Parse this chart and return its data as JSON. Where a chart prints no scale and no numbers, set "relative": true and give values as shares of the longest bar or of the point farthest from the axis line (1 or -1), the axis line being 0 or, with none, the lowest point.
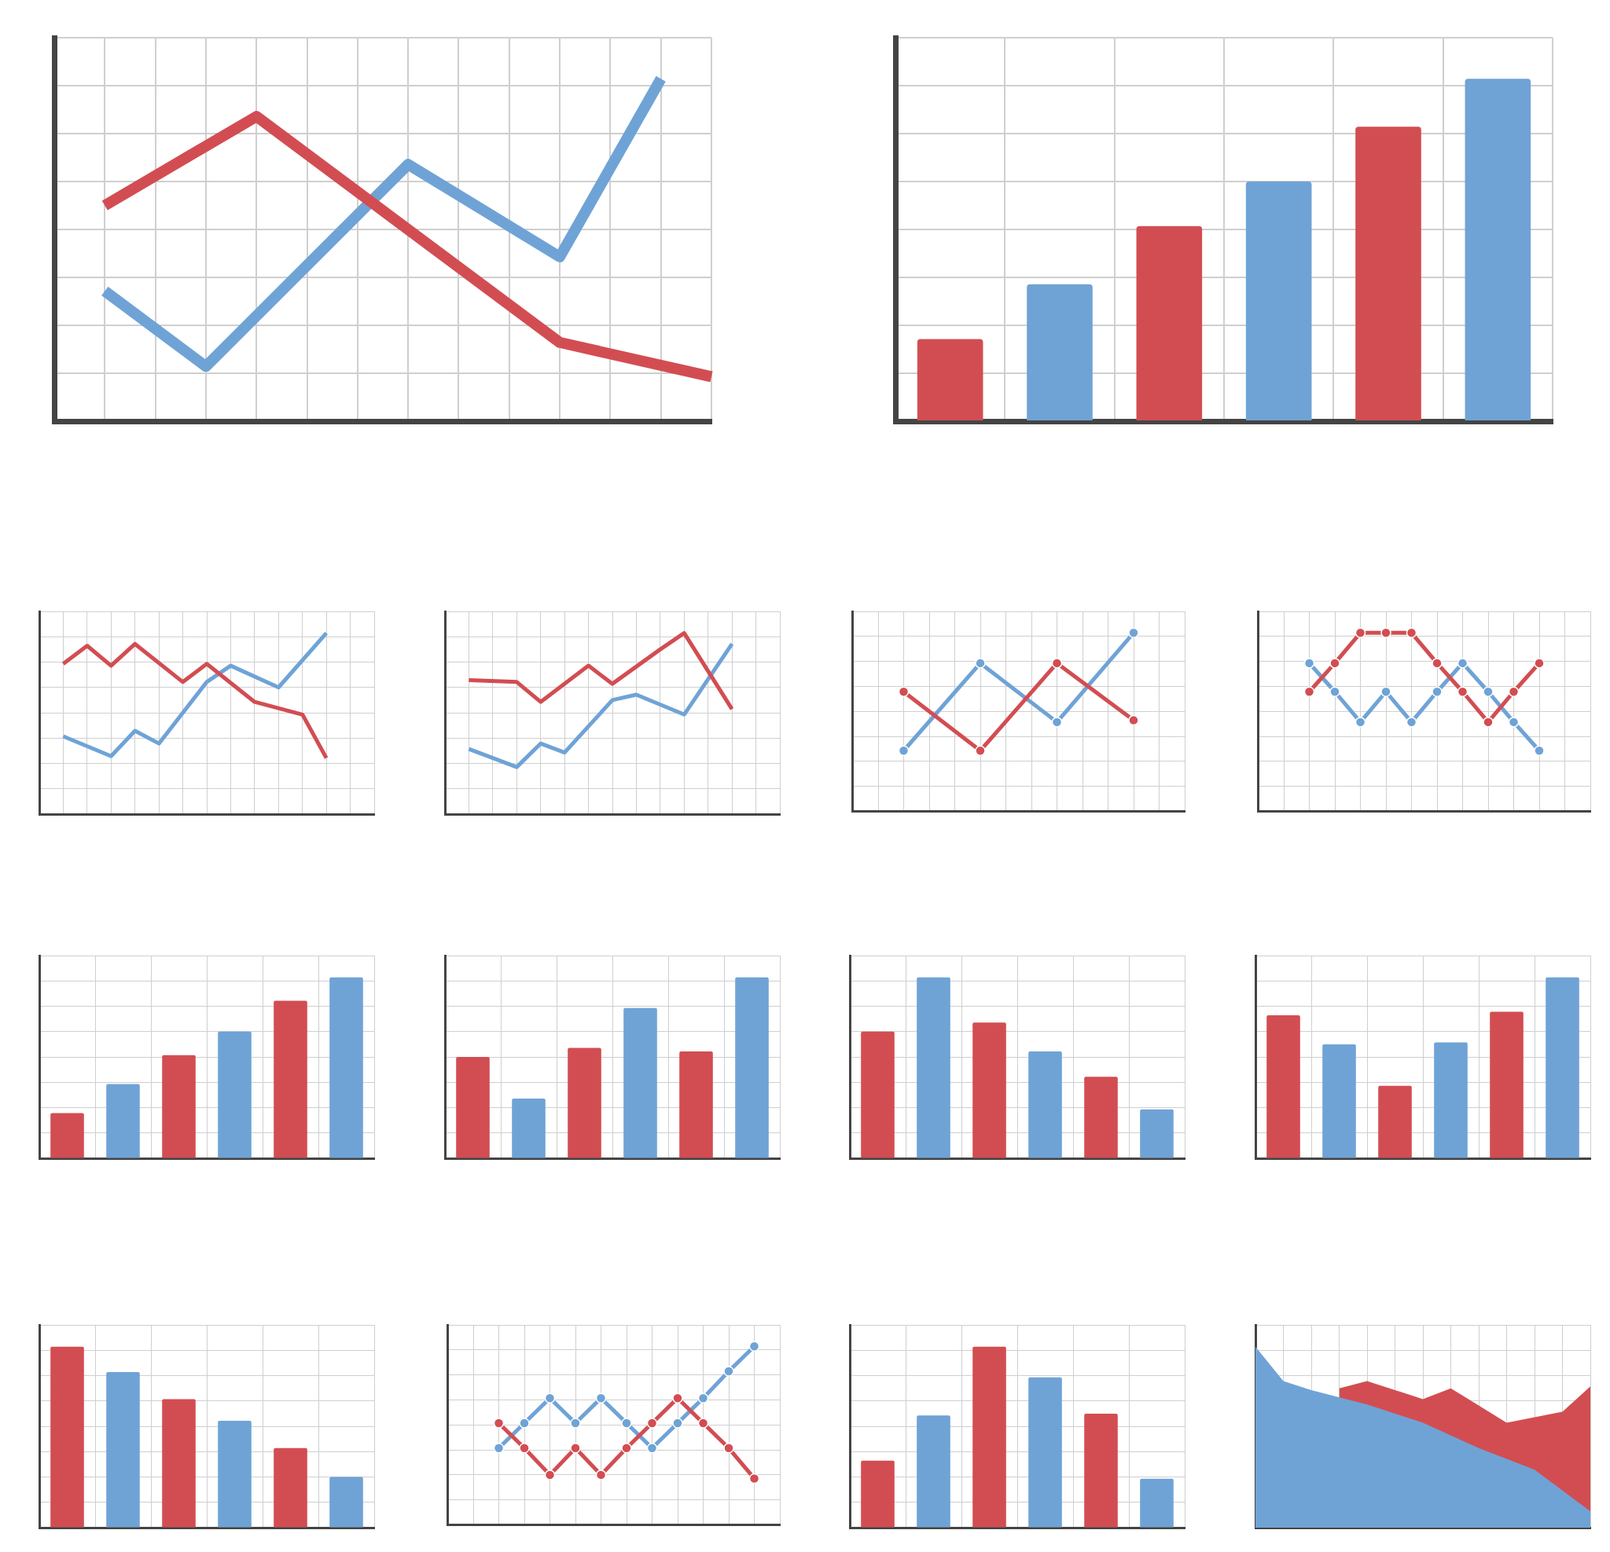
{
  "chart_data": [
    {
      "type": "line",
      "relative": true,
      "grid": true,
      "categories": [
        null,
        null,
        null,
        null,
        null,
        null,
        null,
        null,
        null,
        null,
        null,
        null,
        null,
        null
      ],
      "series": [
        {
          "color": "#d24d52",
          "values": [
            null,
            0.63,
            null,
            null,
            0.89,
            null,
            null,
            null,
            null,
            null,
            0.23,
            null,
            null,
            0.13
          ]
        },
        {
          "color": "#6fa3d6",
          "values": [
            null,
            0.38,
            null,
            0.16,
            null,
            null,
            null,
            0.75,
            null,
            null,
            0.48,
            null,
            1,
            null
          ]
        }
      ]
    },
    {
      "type": "bar",
      "relative": true,
      "grid": true,
      "categories": [
        null,
        null,
        null,
        null,
        null,
        null
      ],
      "values": [
        0.24,
        0.4,
        0.57,
        0.7,
        0.86,
        1
      ],
      "colors": [
        "#d24d52",
        "#6fa3d6",
        "#d24d52",
        "#6fa3d6",
        "#d24d52",
        "#6fa3d6"
      ]
    },
    {
      "type": "line",
      "relative": true,
      "grid": true,
      "categories": [
        null,
        null,
        null,
        null,
        null,
        null,
        null,
        null,
        null,
        null,
        null,
        null,
        null,
        null,
        null
      ],
      "series": [
        {
          "color": "#d24d52",
          "values": [
            null,
            0.83,
            0.93,
            0.82,
            0.94,
            null,
            0.73,
            0.83,
            null,
            0.62,
            null,
            0.55,
            0.31,
            null,
            null
          ]
        },
        {
          "color": "#6fa3d6",
          "values": [
            null,
            0.43,
            null,
            0.32,
            0.46,
            0.39,
            null,
            0.73,
            0.82,
            null,
            0.7,
            null,
            1,
            null,
            null
          ]
        }
      ]
    },
    {
      "type": "line",
      "relative": true,
      "grid": true,
      "categories": [
        null,
        null,
        null,
        null,
        null,
        null,
        null,
        null,
        null,
        null,
        null,
        null,
        null,
        null,
        null
      ],
      "series": [
        {
          "color": "#d24d52",
          "values": [
            null,
            0.74,
            null,
            0.73,
            0.62,
            null,
            0.82,
            0.72,
            null,
            0.91,
            1,
            null,
            0.58,
            null,
            null
          ]
        },
        {
          "color": "#6fa3d6",
          "values": [
            null,
            0.36,
            null,
            0.26,
            0.39,
            0.34,
            null,
            0.63,
            0.66,
            null,
            0.55,
            null,
            0.94,
            null,
            null
          ]
        }
      ]
    },
    {
      "type": "line",
      "relative": true,
      "grid": true,
      "marker": "circle",
      "categories": [
        null,
        null,
        null,
        null,
        null,
        null,
        null,
        null,
        null,
        null,
        null,
        null,
        null,
        null
      ],
      "series": [
        {
          "color": "#d24d52",
          "values": [
            null,
            null,
            0.67,
            null,
            null,
            0.34,
            null,
            null,
            0.83,
            null,
            null,
            0.51,
            null,
            null
          ]
        },
        {
          "color": "#6fa3d6",
          "values": [
            null,
            null,
            0.34,
            null,
            null,
            0.83,
            null,
            null,
            0.5,
            null,
            null,
            1,
            null,
            null
          ]
        }
      ]
    },
    {
      "type": "line",
      "relative": true,
      "grid": true,
      "marker": "circle",
      "categories": [
        null,
        null,
        null,
        null,
        null,
        null,
        null,
        null,
        null,
        null,
        null,
        null,
        null,
        null
      ],
      "series": [
        {
          "color": "#d24d52",
          "values": [
            null,
            null,
            0.67,
            0.83,
            1,
            1,
            1,
            0.83,
            0.67,
            0.5,
            0.67,
            0.83,
            null,
            null
          ]
        },
        {
          "color": "#6fa3d6",
          "values": [
            null,
            null,
            0.83,
            0.67,
            0.5,
            0.67,
            0.5,
            0.67,
            0.83,
            0.67,
            0.5,
            0.34,
            null,
            null
          ]
        }
      ]
    },
    {
      "type": "bar",
      "relative": true,
      "grid": true,
      "categories": [
        null,
        null,
        null,
        null,
        null,
        null
      ],
      "values": [
        0.25,
        0.41,
        0.57,
        0.7,
        0.87,
        1
      ],
      "colors": [
        "#d24d52",
        "#6fa3d6",
        "#d24d52",
        "#6fa3d6",
        "#d24d52",
        "#6fa3d6"
      ]
    },
    {
      "type": "bar",
      "relative": true,
      "grid": true,
      "categories": [
        null,
        null,
        null,
        null,
        null,
        null
      ],
      "values": [
        0.56,
        0.33,
        0.61,
        0.83,
        0.59,
        1
      ],
      "colors": [
        "#d24d52",
        "#6fa3d6",
        "#d24d52",
        "#6fa3d6",
        "#d24d52",
        "#6fa3d6"
      ]
    },
    {
      "type": "bar",
      "relative": true,
      "grid": true,
      "categories": [
        null,
        null,
        null,
        null,
        null,
        null
      ],
      "values": [
        0.7,
        1,
        0.75,
        0.59,
        0.45,
        0.27
      ],
      "colors": [
        "#d24d52",
        "#6fa3d6",
        "#d24d52",
        "#6fa3d6",
        "#d24d52",
        "#6fa3d6"
      ]
    },
    {
      "type": "bar",
      "relative": true,
      "grid": true,
      "categories": [
        null,
        null,
        null,
        null,
        null,
        null
      ],
      "values": [
        0.79,
        0.63,
        0.4,
        0.64,
        0.81,
        1
      ],
      "colors": [
        "#d24d52",
        "#6fa3d6",
        "#d24d52",
        "#6fa3d6",
        "#d24d52",
        "#6fa3d6"
      ]
    },
    {
      "type": "bar",
      "relative": true,
      "grid": true,
      "categories": [
        null,
        null,
        null,
        null,
        null,
        null
      ],
      "values": [
        1,
        0.86,
        0.71,
        0.59,
        0.44,
        0.28
      ],
      "colors": [
        "#d24d52",
        "#6fa3d6",
        "#d24d52",
        "#6fa3d6",
        "#d24d52",
        "#6fa3d6"
      ]
    },
    {
      "type": "line",
      "relative": true,
      "grid": true,
      "marker": "circle",
      "categories": [
        null,
        null,
        null,
        null,
        null,
        null,
        null,
        null,
        null,
        null,
        null,
        null,
        null,
        null
      ],
      "series": [
        {
          "color": "#d24d52",
          "values": [
            null,
            null,
            0.57,
            0.43,
            0.28,
            0.43,
            0.28,
            0.43,
            0.57,
            0.71,
            0.57,
            0.43,
            0.26,
            null
          ]
        },
        {
          "color": "#6fa3d6",
          "values": [
            null,
            null,
            0.43,
            0.57,
            0.71,
            0.57,
            0.71,
            0.57,
            0.43,
            0.57,
            0.71,
            0.86,
            1,
            null
          ]
        }
      ]
    },
    {
      "type": "bar",
      "relative": true,
      "grid": true,
      "categories": [
        null,
        null,
        null,
        null,
        null,
        null
      ],
      "values": [
        0.37,
        0.62,
        1,
        0.83,
        0.63,
        0.27
      ],
      "colors": [
        "#d24d52",
        "#6fa3d6",
        "#d24d52",
        "#6fa3d6",
        "#d24d52",
        "#6fa3d6"
      ]
    },
    {
      "type": "area",
      "relative": true,
      "grid": true,
      "categories": [
        null,
        null,
        null,
        null,
        null,
        null,
        null,
        null,
        null,
        null,
        null,
        null,
        null
      ],
      "series": [
        {
          "color": "#6fa3d6",
          "values": [
            1,
            0.81,
            0.76,
            null,
            0.68,
            null,
            0.58,
            null,
            0.44,
            null,
            0.32,
            null,
            0.09
          ]
        },
        {
          "color": "#d24d52",
          "values": [
            null,
            null,
            null,
            0.77,
            0.81,
            null,
            0.71,
            0.77,
            null,
            0.58,
            null,
            0.64,
            0.78
          ]
        }
      ]
    }
  ]
}
